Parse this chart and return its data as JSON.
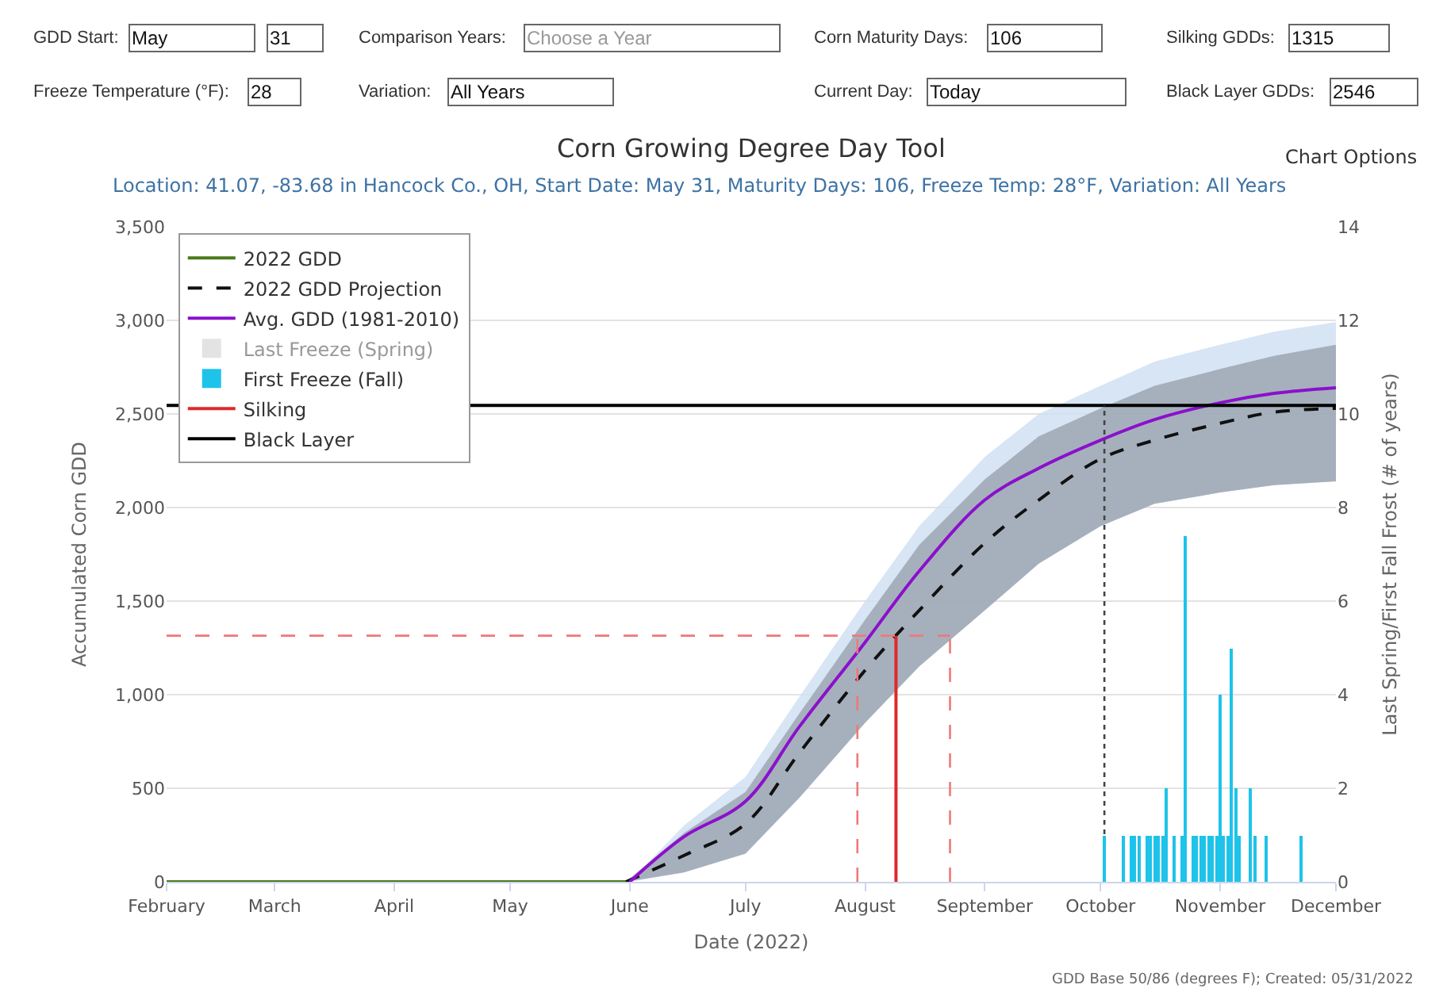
{
  "chart_data": {
    "type": "line",
    "title": "Corn Growing Degree Day Tool",
    "subtitle": "Location: 41.07, -83.68 in Hancock Co., OH, Start Date: May 31, Maturity Days: 106, Freeze Temp: 28°F, Variation: All Years",
    "xlabel": "Date (2022)",
    "ylabel": "Accumulated Corn GDD",
    "y2label": "Last Spring/First Fall Frost (# of years)",
    "annotations": [
      "GDD Start:",
      "May",
      "31",
      "Comparison Years:",
      "Choose a Year",
      "Corn Maturity Days:",
      "106",
      "Silking GDDs:",
      "1315",
      "Freeze Temperature (°F):",
      "28",
      "Variation:",
      "All Years",
      "Current Day:",
      "Today",
      "Black Layer GDDs:",
      "2546",
      "Chart Options",
      "GDD Base 50/86 (degrees F); Created: 05/31/2022"
    ],
    "xlim": [
      "2022-02-01",
      "2022-12-01"
    ],
    "xticks": [
      {
        "value": "2022-02-01",
        "label": "February"
      },
      {
        "value": "2022-03-01",
        "label": "March"
      },
      {
        "value": "2022-04-01",
        "label": "April"
      },
      {
        "value": "2022-05-01",
        "label": "May"
      },
      {
        "value": "2022-06-01",
        "label": "June"
      },
      {
        "value": "2022-07-01",
        "label": "July"
      },
      {
        "value": "2022-08-01",
        "label": "August"
      },
      {
        "value": "2022-09-01",
        "label": "September"
      },
      {
        "value": "2022-10-01",
        "label": "October"
      },
      {
        "value": "2022-11-01",
        "label": "November"
      },
      {
        "value": "2022-12-01",
        "label": "December"
      }
    ],
    "ylim": [
      0,
      3500
    ],
    "yticks": [
      0,
      {
        "value": 500,
        "label": "500"
      },
      {
        "value": 1000,
        "label": "1,000"
      },
      {
        "value": 1500,
        "label": "1,500"
      },
      {
        "value": 2000,
        "label": "2,000"
      },
      {
        "value": 2500,
        "label": "2,500"
      },
      {
        "value": 3000,
        "label": "3,000"
      },
      {
        "value": 3500,
        "label": "3,500"
      }
    ],
    "y2lim": [
      0,
      14
    ],
    "y2ticks": [
      0,
      2,
      4,
      6,
      8,
      10,
      12,
      14
    ],
    "grid": "y",
    "legend": "top left",
    "series": [
      {
        "name": "2022 GDD",
        "color": "#4b7a1b",
        "line_style": "solid",
        "x": [
          "2022-02-01",
          "2022-05-31"
        ],
        "values": [
          0,
          0
        ]
      },
      {
        "name": "2022 GDD Projection",
        "color": "#111111",
        "line_style": "dashed",
        "x": [
          "2022-05-31",
          "2022-06-15",
          "2022-07-01",
          "2022-07-15",
          "2022-08-01",
          "2022-08-15",
          "2022-09-01",
          "2022-09-15",
          "2022-10-01",
          "2022-10-15",
          "2022-11-01",
          "2022-11-15",
          "2022-12-01"
        ],
        "values": [
          0,
          140,
          310,
          690,
          1130,
          1450,
          1810,
          2040,
          2260,
          2360,
          2450,
          2510,
          2530
        ],
        "lower": [
          0,
          50,
          150,
          450,
          850,
          1150,
          1450,
          1700,
          1900,
          2020,
          2080,
          2120,
          2140
        ],
        "upper": [
          0,
          260,
          480,
          900,
          1400,
          1800,
          2150,
          2380,
          2530,
          2650,
          2740,
          2810,
          2870
        ]
      },
      {
        "name": "Avg. GDD (1981-2010)",
        "color": "#8b10cc",
        "line_style": "solid",
        "x": [
          "2022-06-01",
          "2022-06-15",
          "2022-07-01",
          "2022-07-15",
          "2022-08-01",
          "2022-08-15",
          "2022-09-01",
          "2022-09-15",
          "2022-10-01",
          "2022-10-15",
          "2022-11-01",
          "2022-11-15",
          "2022-12-01"
        ],
        "values": [
          0,
          240,
          430,
          830,
          1280,
          1660,
          2040,
          2210,
          2360,
          2470,
          2560,
          2610,
          2640
        ],
        "lower": [
          0,
          50,
          150,
          450,
          850,
          1150,
          1450,
          1700,
          1900,
          2020,
          2080,
          2120,
          2140
        ],
        "upper": [
          0,
          300,
          560,
          990,
          1500,
          1900,
          2270,
          2500,
          2650,
          2780,
          2870,
          2940,
          2990
        ]
      },
      {
        "name": "Last Freeze (Spring)",
        "type": "bar",
        "color": "#c8c8c8",
        "axis": "y2"
      },
      {
        "name": "First Freeze (Fall)",
        "type": "bar",
        "color": "#1ec3ea",
        "axis": "y2",
        "x": [
          "2022-10-02",
          "2022-10-07",
          "2022-10-09",
          "2022-10-10",
          "2022-10-11",
          "2022-10-13",
          "2022-10-14",
          "2022-10-15",
          "2022-10-16",
          "2022-10-17",
          "2022-10-18",
          "2022-10-20",
          "2022-10-22",
          "2022-10-23",
          "2022-10-25",
          "2022-10-26",
          "2022-10-27",
          "2022-10-28",
          "2022-10-29",
          "2022-10-30",
          "2022-10-31",
          "2022-11-01",
          "2022-11-02",
          "2022-11-03",
          "2022-11-04",
          "2022-11-05",
          "2022-11-06",
          "2022-11-09",
          "2022-11-10",
          "2022-11-13",
          "2022-11-22"
        ],
        "values": [
          1,
          1,
          1,
          1,
          1,
          1,
          1,
          1,
          1,
          1,
          2,
          1,
          1,
          7.4,
          1,
          1,
          1,
          1,
          1,
          1,
          1,
          4,
          1,
          1,
          5,
          2,
          1,
          2,
          1,
          1,
          1
        ]
      },
      {
        "name": "Silking",
        "color": "#e02828",
        "line_style": "solid",
        "x": [
          "2022-08-09",
          "2022-08-09"
        ],
        "values": [
          0,
          1315
        ]
      },
      {
        "name": "Black Layer",
        "color": "#000000",
        "line_style": "solid",
        "x": [
          "2022-02-01",
          "2022-12-01"
        ],
        "values": [
          2546,
          2546
        ]
      },
      {
        "color": "#f07878",
        "line_style": "dashed",
        "x": [
          "2022-02-01",
          "2022-08-23"
        ],
        "values": [
          1315,
          1315
        ]
      },
      {
        "color": "#f07878",
        "line_style": "dashed",
        "x": [
          "2022-07-30",
          "2022-07-30"
        ],
        "values": [
          0,
          1315
        ]
      },
      {
        "color": "#f07878",
        "line_style": "dashed",
        "x": [
          "2022-08-23",
          "2022-08-23"
        ],
        "values": [
          0,
          1315
        ]
      },
      {
        "color": "#444444",
        "line_style": "dotted",
        "x": [
          "2022-10-02",
          "2022-10-02"
        ],
        "values": [
          0,
          2546
        ]
      }
    ]
  }
}
